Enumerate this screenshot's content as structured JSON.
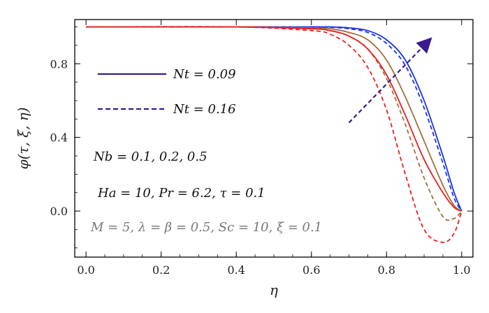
{
  "chart_data": {
    "type": "line",
    "title": "",
    "xlabel": "η",
    "ylabel": "φ(τ, ξ, η)",
    "xlim": [
      -0.03,
      1.03
    ],
    "ylim": [
      -0.25,
      1.04
    ],
    "x_ticks": [
      {
        "value": 0.0,
        "label": "0.0"
      },
      {
        "value": 0.2,
        "label": "0.2"
      },
      {
        "value": 0.4,
        "label": "0.4"
      },
      {
        "value": 0.6,
        "label": "0.6"
      },
      {
        "value": 0.8,
        "label": "0.8"
      },
      {
        "value": 1.0,
        "label": "1.0"
      }
    ],
    "y_ticks": [
      {
        "value": 0.0,
        "label": "0.0"
      },
      {
        "value": 0.4,
        "label": "0.4"
      },
      {
        "value": 0.8,
        "label": "0.8"
      }
    ],
    "grid": false,
    "legend_position": "top-left",
    "legend": [
      {
        "label": "Nt = 0.09",
        "style": "solid",
        "color": "#3b1a8f"
      },
      {
        "label": "Nt = 0.16",
        "style": "dashed",
        "color": "#3b1a8f"
      }
    ],
    "annotations": [
      "Nb = 0.1, 0.2, 0.5",
      "Ha = 10, Pr = 6.2, τ = 0.1",
      "M = 5, λ = β = 0.5, Sc = 10, ξ = 0.1"
    ],
    "arrow": {
      "from": [
        0.7,
        0.48
      ],
      "to": [
        0.91,
        0.92
      ],
      "color": "#3b1a8f"
    },
    "series": [
      {
        "style": "solid",
        "color": "#1a33e6",
        "x": [
          0,
          0.4,
          0.6,
          0.65,
          0.7,
          0.75,
          0.8,
          0.85,
          0.9,
          0.95,
          0.98,
          1.0
        ],
        "y": [
          1.0,
          1.0,
          1.0,
          1.0,
          0.995,
          0.98,
          0.93,
          0.82,
          0.6,
          0.3,
          0.1,
          0.0
        ]
      },
      {
        "style": "dashed",
        "color": "#1a33e6",
        "x": [
          0,
          0.4,
          0.6,
          0.65,
          0.7,
          0.75,
          0.8,
          0.85,
          0.9,
          0.95,
          0.98,
          1.0
        ],
        "y": [
          1.0,
          1.0,
          1.0,
          0.998,
          0.99,
          0.97,
          0.91,
          0.79,
          0.56,
          0.26,
          0.07,
          0.0
        ]
      },
      {
        "style": "solid",
        "color": "#a0703a",
        "x": [
          0,
          0.4,
          0.6,
          0.65,
          0.7,
          0.75,
          0.8,
          0.85,
          0.9,
          0.95,
          0.98,
          1.0
        ],
        "y": [
          1.0,
          1.0,
          0.995,
          0.99,
          0.97,
          0.93,
          0.82,
          0.62,
          0.38,
          0.14,
          0.03,
          0.0
        ]
      },
      {
        "style": "dashed",
        "color": "#a0703a",
        "x": [
          0,
          0.4,
          0.6,
          0.65,
          0.7,
          0.75,
          0.8,
          0.85,
          0.9,
          0.95,
          0.98,
          1.0
        ],
        "y": [
          1.0,
          1.0,
          0.99,
          0.98,
          0.95,
          0.88,
          0.72,
          0.47,
          0.18,
          -0.03,
          -0.04,
          0.0
        ]
      },
      {
        "style": "solid",
        "color": "#e62020",
        "x": [
          0,
          0.4,
          0.6,
          0.65,
          0.7,
          0.75,
          0.8,
          0.85,
          0.9,
          0.95,
          0.98,
          1.0
        ],
        "y": [
          1.0,
          1.0,
          0.99,
          0.98,
          0.95,
          0.88,
          0.74,
          0.52,
          0.28,
          0.1,
          0.02,
          0.0
        ]
      },
      {
        "style": "dashed",
        "color": "#e62020",
        "x": [
          0,
          0.4,
          0.6,
          0.65,
          0.7,
          0.75,
          0.8,
          0.85,
          0.9,
          0.95,
          0.98,
          1.0
        ],
        "y": [
          1.0,
          1.0,
          0.98,
          0.96,
          0.9,
          0.78,
          0.55,
          0.2,
          -0.1,
          -0.17,
          -0.12,
          0.0
        ]
      }
    ]
  }
}
